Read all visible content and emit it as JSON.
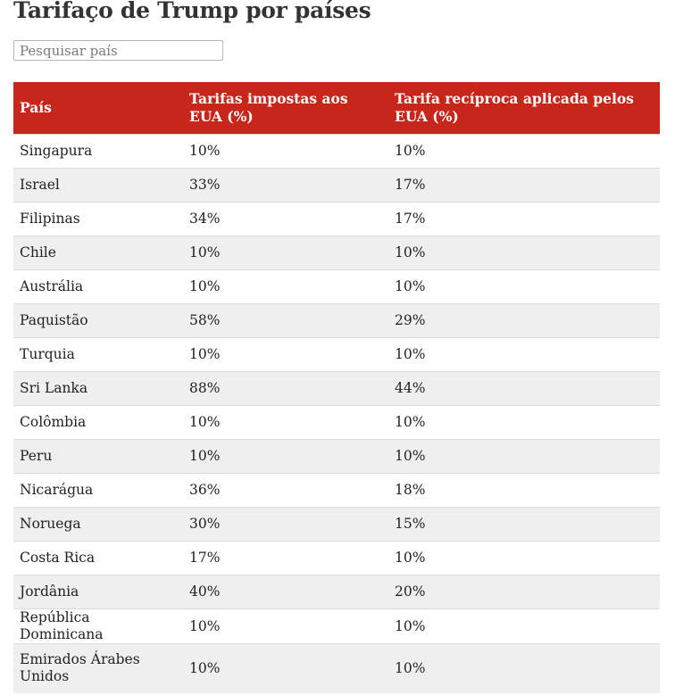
{
  "title": "Tarifaço de Trump por países",
  "search": {
    "placeholder": "Pesquisar país"
  },
  "table": {
    "headers": [
      "País",
      "Tarifas impostas aos EUA (%)",
      "Tarifa recíproca aplicada pelos EUA (%)"
    ],
    "rows": [
      [
        "Singapura",
        "10%",
        "10%"
      ],
      [
        "Israel",
        "33%",
        "17%"
      ],
      [
        "Filipinas",
        "34%",
        "17%"
      ],
      [
        "Chile",
        "10%",
        "10%"
      ],
      [
        "Austrália",
        "10%",
        "10%"
      ],
      [
        "Paquistão",
        "58%",
        "29%"
      ],
      [
        "Turquia",
        "10%",
        "10%"
      ],
      [
        "Sri Lanka",
        "88%",
        "44%"
      ],
      [
        "Colômbia",
        "10%",
        "10%"
      ],
      [
        "Peru",
        "10%",
        "10%"
      ],
      [
        "Nicarágua",
        "36%",
        "18%"
      ],
      [
        "Noruega",
        "30%",
        "15%"
      ],
      [
        "Costa Rica",
        "17%",
        "10%"
      ],
      [
        "Jordânia",
        "40%",
        "20%"
      ],
      [
        "República Dominicana",
        "10%",
        "10%"
      ],
      [
        "Emirados Árabes Unidos",
        "10%",
        "10%"
      ]
    ]
  },
  "colors": {
    "header_bg": "#c8261b",
    "header_text": "#ffffff",
    "stripe": "#efefef"
  }
}
